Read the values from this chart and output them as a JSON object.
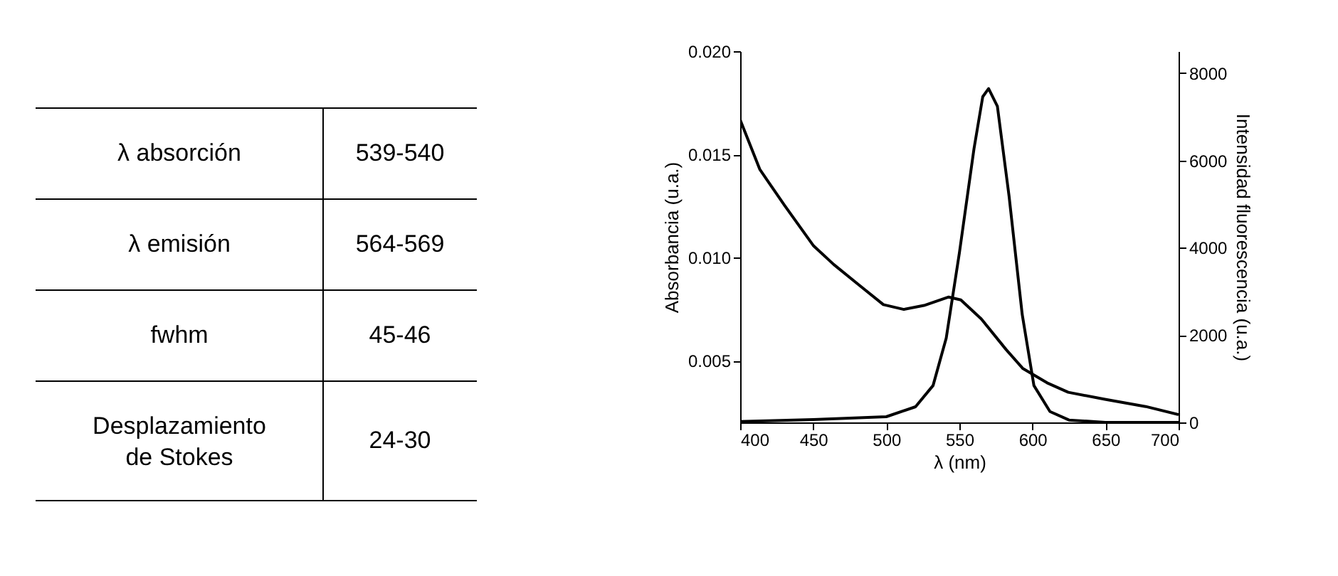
{
  "chart_data": [
    {
      "type": "other",
      "annotations": [
        "λ absorción",
        "539-540",
        "λ emisión",
        "564-569",
        "fwhm",
        "45-46",
        "Desplazamiento de Stokes",
        "24-30"
      ]
    },
    {
      "type": "line",
      "xlabel": "λ (nm)",
      "ylabel": "Absorbancia (u.a.)",
      "y2label": "Intensidad fluorescencia (u.a.)",
      "xlim": [
        400,
        700
      ],
      "xticks": [
        400,
        450,
        500,
        550,
        600,
        650,
        700
      ],
      "ylim": [
        0.002,
        0.02
      ],
      "yticks": [
        {
          "value": 0.005,
          "label": "0.005"
        },
        {
          "value": 0.01,
          "label": "0.010"
        },
        {
          "value": 0.015,
          "label": "0.015"
        },
        {
          "value": 0.02,
          "label": "0.020"
        }
      ],
      "y2lim": [
        0,
        8500
      ],
      "y2ticks": [
        0,
        2000,
        4000,
        6000,
        8000
      ],
      "grid": false,
      "series": [
        {
          "color": "#000000",
          "x": [
            400,
            413.5,
            430.3,
            450,
            464,
            481,
            498,
            512,
            525.8,
            542.7,
            551,
            565,
            582,
            593.5,
            610,
            624.5,
            649.6,
            677.5,
            700
          ],
          "values": [
            0.01667,
            0.01426,
            0.01253,
            0.01058,
            0.00966,
            0.00868,
            0.00771,
            0.00748,
            0.00767,
            0.00808,
            0.00794,
            0.00702,
            0.00553,
            0.00461,
            0.00392,
            0.00346,
            0.00312,
            0.00277,
            0.00238
          ]
        },
        {
          "color": "#000000",
          "axis": "y2",
          "x": [
            400,
            450,
            500,
            520,
            532,
            541,
            550,
            560,
            566,
            570,
            576,
            584,
            593,
            601,
            612,
            625,
            650,
            700
          ],
          "values": [
            20,
            65,
            130,
            358,
            845,
            1930,
            3880,
            6265,
            7458,
            7642,
            7241,
            5181,
            2472,
            845,
            249,
            54,
            0,
            0
          ]
        }
      ]
    }
  ]
}
